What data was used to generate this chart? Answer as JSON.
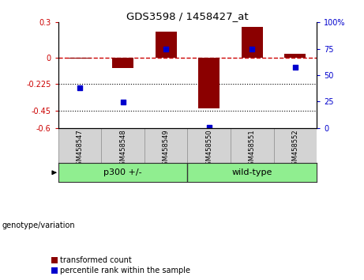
{
  "title": "GDS3598 / 1458427_at",
  "samples": [
    "GSM458547",
    "GSM458548",
    "GSM458549",
    "GSM458550",
    "GSM458551",
    "GSM458552"
  ],
  "bar_values": [
    -0.01,
    -0.09,
    0.22,
    -0.43,
    0.26,
    0.03
  ],
  "percentile_values": [
    -0.255,
    -0.38,
    0.07,
    -0.595,
    0.07,
    -0.08
  ],
  "ylim_left": [
    -0.6,
    0.3
  ],
  "yticks_left": [
    -0.6,
    -0.45,
    -0.225,
    0,
    0.3
  ],
  "ytick_labels_left": [
    "-0.6",
    "-0.45",
    "-0.225",
    "0",
    "0.3"
  ],
  "ylim_right": [
    0,
    100
  ],
  "yticks_right": [
    0,
    25,
    50,
    75,
    100
  ],
  "ytick_labels_right": [
    "0",
    "25",
    "50",
    "75",
    "100%"
  ],
  "bar_color": "#8B0000",
  "percentile_color": "#0000CD",
  "zero_line_color": "#CC0000",
  "dotted_lines": [
    -0.225,
    -0.45
  ],
  "bar_width": 0.5,
  "legend_items": [
    "transformed count",
    "percentile rank within the sample"
  ],
  "xlabel_left": "genotype/variation",
  "plot_bg": "#ffffff",
  "tick_label_area_bg": "#d3d3d3",
  "group_green": "#90EE90"
}
